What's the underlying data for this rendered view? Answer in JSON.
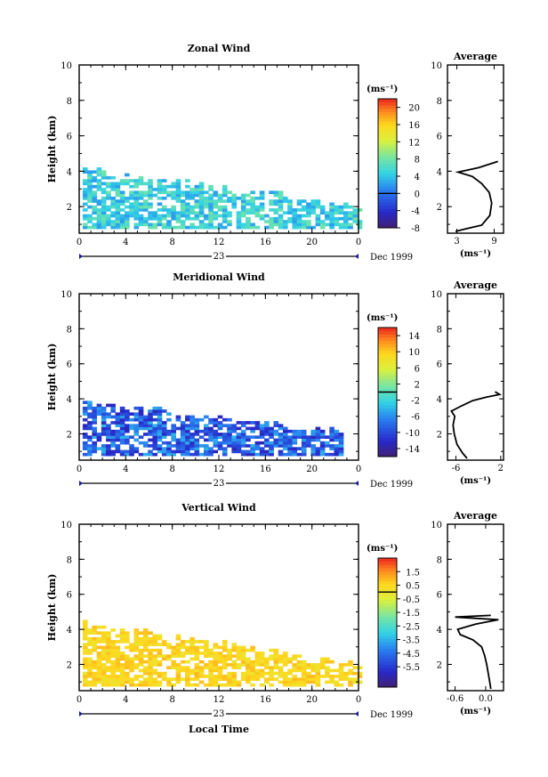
{
  "date_label": "Dec 1999",
  "day_label": "23",
  "x_label": "Local Time",
  "chart_data": [
    {
      "id": "zonal",
      "type": "heatmap",
      "title": "Zonal Wind",
      "xlabel": "Local Time",
      "ylabel": "Height (km)",
      "xlim": [
        0,
        24
      ],
      "ylim": [
        0.5,
        10
      ],
      "xticks": [
        "0",
        "4",
        "8",
        "12",
        "16",
        "20",
        "0"
      ],
      "yticks": [
        "2",
        "4",
        "6",
        "8",
        "10"
      ],
      "colorbar": {
        "unit": "(ms⁻¹)",
        "min": -8,
        "max": 22,
        "ticks": [
          "20",
          "16",
          "12",
          "8",
          "4",
          "0",
          "-4",
          "-8"
        ]
      },
      "data_extent": {
        "x_end": 24,
        "top_km": 4.0
      },
      "value_range": [
        2,
        8
      ],
      "profile": {
        "title": "Average",
        "xlabel": "(ms⁻¹)",
        "xlim": [
          1.5,
          10.5
        ],
        "xticks": [
          "3",
          "9"
        ],
        "ylim": [
          0.5,
          10
        ],
        "yticks": [
          "2",
          "4",
          "6",
          "8",
          "10"
        ],
        "points": [
          [
            2.8,
            0.6
          ],
          [
            4.5,
            0.75
          ],
          [
            7.0,
            0.95
          ],
          [
            8.3,
            1.5
          ],
          [
            8.6,
            2.2
          ],
          [
            8.2,
            2.8
          ],
          [
            7.0,
            3.3
          ],
          [
            5.5,
            3.7
          ],
          [
            3.2,
            3.95
          ],
          [
            6.5,
            4.2
          ],
          [
            9.6,
            4.55
          ]
        ]
      }
    },
    {
      "id": "meridional",
      "type": "heatmap",
      "title": "Meridional Wind",
      "xlabel": "Local Time",
      "ylabel": "Height (km)",
      "xlim": [
        0,
        24
      ],
      "ylim": [
        0.5,
        10
      ],
      "xticks": [
        "0",
        "4",
        "8",
        "12",
        "16",
        "20",
        "0"
      ],
      "yticks": [
        "2",
        "4",
        "6",
        "8",
        "10"
      ],
      "colorbar": {
        "unit": "(ms⁻¹)",
        "min": -16,
        "max": 16,
        "ticks": [
          "14",
          "10",
          "6",
          "2",
          "-2",
          "-6",
          "-10",
          "-14"
        ]
      },
      "data_extent": {
        "x_end": 22.5,
        "top_km": 3.7
      },
      "value_range": [
        -13,
        -4
      ],
      "profile": {
        "title": "Average",
        "xlabel": "(ms⁻¹)",
        "xlim": [
          -7.5,
          2.5
        ],
        "xticks": [
          "-6",
          "2"
        ],
        "ylim": [
          0.5,
          10
        ],
        "yticks": [
          "2",
          "4",
          "6",
          "8",
          "10"
        ],
        "points": [
          [
            -4.0,
            0.6
          ],
          [
            -4.8,
            0.9
          ],
          [
            -5.8,
            1.4
          ],
          [
            -6.3,
            2.0
          ],
          [
            -6.5,
            2.5
          ],
          [
            -6.2,
            3.0
          ],
          [
            -6.8,
            3.3
          ],
          [
            -5.0,
            3.6
          ],
          [
            -3.0,
            3.9
          ],
          [
            -0.5,
            4.1
          ],
          [
            1.8,
            4.25
          ],
          [
            1.0,
            4.4
          ]
        ]
      }
    },
    {
      "id": "vertical",
      "type": "heatmap",
      "title": "Vertical Wind",
      "xlabel": "Local Time",
      "ylabel": "Height (km)",
      "xlim": [
        0,
        24
      ],
      "ylim": [
        0.5,
        10
      ],
      "xticks": [
        "0",
        "4",
        "8",
        "12",
        "16",
        "20",
        "0"
      ],
      "yticks": [
        "2",
        "4",
        "6",
        "8",
        "10"
      ],
      "colorbar": {
        "unit": "(ms⁻¹)",
        "min": -7,
        "max": 2.5,
        "ticks": [
          "1.5",
          "0.5",
          "-0.5",
          "-1.5",
          "-2.5",
          "-3.5",
          "-4.5",
          "-5.5"
        ]
      },
      "data_extent": {
        "x_end": 24,
        "top_km": 4.2
      },
      "value_range": [
        0.0,
        1.0
      ],
      "profile": {
        "title": "Average",
        "xlabel": "(ms⁻¹)",
        "xlim": [
          -0.75,
          0.35
        ],
        "xticks": [
          "-0.6",
          "0.0"
        ],
        "ylim": [
          0.5,
          10
        ],
        "yticks": [
          "2",
          "4",
          "6",
          "8",
          "10"
        ],
        "points": [
          [
            0.1,
            0.6
          ],
          [
            0.08,
            1.0
          ],
          [
            0.05,
            1.5
          ],
          [
            0.02,
            2.0
          ],
          [
            -0.02,
            2.5
          ],
          [
            -0.08,
            3.0
          ],
          [
            -0.25,
            3.4
          ],
          [
            -0.5,
            3.7
          ],
          [
            -0.55,
            4.0
          ],
          [
            -0.2,
            4.3
          ],
          [
            0.25,
            4.55
          ],
          [
            -0.6,
            4.7
          ],
          [
            0.1,
            4.8
          ]
        ]
      }
    }
  ]
}
